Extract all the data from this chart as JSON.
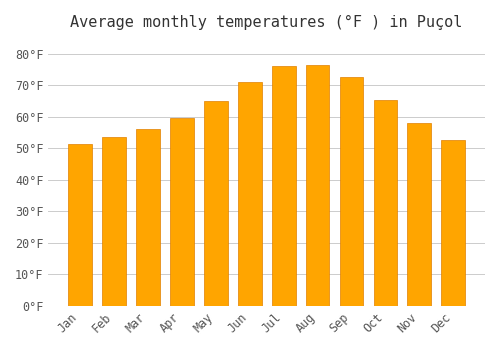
{
  "title": "Average monthly temperatures (°F ) in Puçol",
  "months": [
    "Jan",
    "Feb",
    "Mar",
    "Apr",
    "May",
    "Jun",
    "Jul",
    "Aug",
    "Sep",
    "Oct",
    "Nov",
    "Dec"
  ],
  "values": [
    51.5,
    53.5,
    56.0,
    59.5,
    65.0,
    71.0,
    76.0,
    76.5,
    72.5,
    65.5,
    58.0,
    52.5
  ],
  "bar_color": "#FFA500",
  "bar_edge_color": "#E08000",
  "background_color": "#ffffff",
  "grid_color": "#cccccc",
  "text_color": "#555555",
  "ylim": [
    0,
    85
  ],
  "yticks": [
    0,
    10,
    20,
    30,
    40,
    50,
    60,
    70,
    80
  ],
  "ytick_labels": [
    "0°F",
    "10°F",
    "20°F",
    "30°F",
    "40°F",
    "50°F",
    "60°F",
    "70°F",
    "80°F"
  ],
  "title_fontsize": 11,
  "tick_fontsize": 8.5,
  "font_family": "monospace"
}
